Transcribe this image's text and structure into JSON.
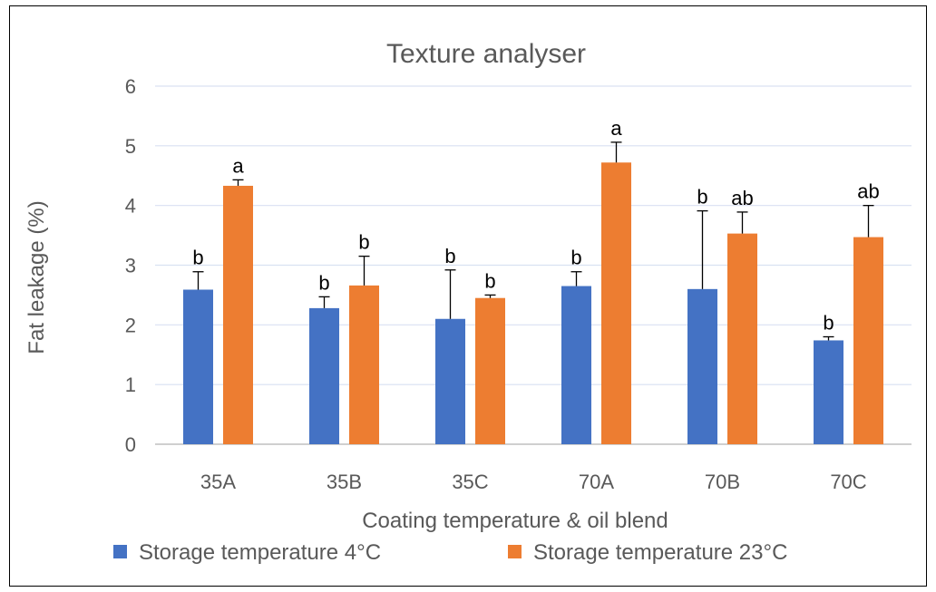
{
  "chart_data": {
    "type": "bar",
    "title": "Texture analyser",
    "xlabel": "Coating temperature & oil blend",
    "ylabel": "Fat leakage (%)",
    "ylim": [
      0,
      6
    ],
    "yticks": [
      0,
      1,
      2,
      3,
      4,
      5,
      6
    ],
    "grid": true,
    "legend_position": "bottom",
    "categories": [
      "35A",
      "35B",
      "35C",
      "70A",
      "70B",
      "70C"
    ],
    "series": [
      {
        "name": "Storage temperature 4°C",
        "color": "#4472C4",
        "values": [
          2.59,
          2.28,
          2.1,
          2.65,
          2.6,
          1.74
        ],
        "error": [
          0.3,
          0.19,
          0.82,
          0.24,
          1.31,
          0.06
        ],
        "labels": [
          "b",
          "b",
          "b",
          "b",
          "b",
          "b"
        ]
      },
      {
        "name": "Storage temperature 23°C",
        "color": "#ED7D31",
        "values": [
          4.33,
          2.66,
          2.45,
          4.72,
          3.53,
          3.47
        ],
        "error": [
          0.1,
          0.49,
          0.05,
          0.34,
          0.36,
          0.53
        ],
        "labels": [
          "a",
          "b",
          "b",
          "a",
          "ab",
          "ab"
        ]
      }
    ]
  }
}
